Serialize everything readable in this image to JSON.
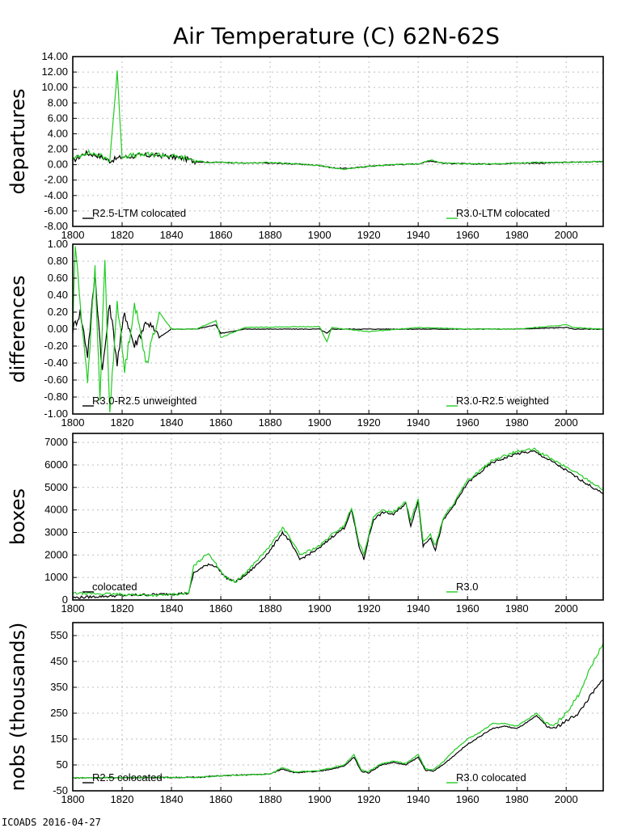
{
  "page": {
    "title": "Air Temperature (C) 62N-62S",
    "footer": "ICOADS 2016-04-27"
  },
  "colors": {
    "black": "#000000",
    "green": "#22cc22"
  },
  "chart_data": [
    {
      "type": "line",
      "ylabel": "departures",
      "xlim": [
        1800,
        2015
      ],
      "ylim": [
        -8,
        14
      ],
      "xticks": [
        1800,
        1820,
        1840,
        1860,
        1880,
        1900,
        1920,
        1940,
        1960,
        1980,
        2000
      ],
      "yticks": [
        -8,
        -6,
        -4,
        -2,
        0,
        2,
        4,
        6,
        8,
        10,
        12,
        14
      ],
      "ytick_labels": [
        "-8.00",
        "-6.00",
        "-4.00",
        "-2.00",
        "0.00",
        "2.00",
        "4.00",
        "6.00",
        "8.00",
        "10.00",
        "12.00",
        "14.00"
      ],
      "grid": true,
      "series": [
        {
          "name": "R2.5-LTM colocated",
          "color": "#000000",
          "legend": "bottom-left",
          "x": [
            1800,
            1805,
            1810,
            1815,
            1818,
            1820,
            1825,
            1830,
            1835,
            1840,
            1845,
            1850,
            1855,
            1860,
            1870,
            1880,
            1890,
            1900,
            1905,
            1910,
            1915,
            1920,
            1930,
            1940,
            1945,
            1950,
            1960,
            1970,
            1980,
            1990,
            2000,
            2015
          ],
          "y": [
            0.5,
            1.5,
            1.2,
            0.5,
            0.8,
            1.0,
            1.1,
            1.2,
            1.2,
            1.0,
            0.8,
            0.4,
            0.3,
            0.3,
            0.2,
            0.2,
            0.1,
            -0.1,
            -0.4,
            -0.5,
            -0.4,
            -0.2,
            0,
            0.1,
            0.5,
            0.2,
            0.1,
            0.1,
            0.2,
            0.2,
            0.3,
            0.4
          ]
        },
        {
          "name": "R3.0-LTM colocated",
          "color": "#22cc22",
          "legend": "bottom-right",
          "x": [
            1800,
            1805,
            1810,
            1815,
            1818,
            1820,
            1825,
            1830,
            1835,
            1840,
            1845,
            1850,
            1855,
            1860,
            1870,
            1880,
            1890,
            1900,
            1905,
            1910,
            1915,
            1920,
            1930,
            1940,
            1945,
            1950,
            1960,
            1970,
            1980,
            1990,
            2000,
            2015
          ],
          "y": [
            0.6,
            1.6,
            1.3,
            0.6,
            12.0,
            1.1,
            1.2,
            1.3,
            1.3,
            1.1,
            0.9,
            0.5,
            0.3,
            0.3,
            0.2,
            0.3,
            0.1,
            -0.1,
            -0.4,
            -0.6,
            -0.4,
            -0.2,
            0,
            0.1,
            0.6,
            0.2,
            0.1,
            0.1,
            0.2,
            0.3,
            0.3,
            0.4
          ]
        }
      ]
    },
    {
      "type": "line",
      "ylabel": "differences",
      "xlim": [
        1800,
        2015
      ],
      "ylim": [
        -1,
        1
      ],
      "xticks": [
        1800,
        1820,
        1840,
        1860,
        1880,
        1900,
        1920,
        1940,
        1960,
        1980,
        2000
      ],
      "yticks": [
        -1,
        -0.8,
        -0.6,
        -0.4,
        -0.2,
        0,
        0.2,
        0.4,
        0.6,
        0.8,
        1
      ],
      "ytick_labels": [
        "-1.00",
        "-0.80",
        "-0.60",
        "-0.40",
        "-0.20",
        "0.00",
        "0.20",
        "0.40",
        "0.60",
        "0.80",
        "1.00"
      ],
      "grid": true,
      "series": [
        {
          "name": "R3.0-R2.5 unweighted",
          "color": "#000000",
          "legend": "bottom-left",
          "x": [
            1800,
            1803,
            1806,
            1809,
            1812,
            1815,
            1818,
            1821,
            1825,
            1830,
            1835,
            1840,
            1850,
            1858,
            1860,
            1870,
            1900,
            1903,
            1905,
            1910,
            1920,
            1940,
            1960,
            1980,
            2000,
            2003,
            2015
          ],
          "y": [
            0,
            0.2,
            -0.3,
            0.65,
            -0.5,
            0.3,
            -0.4,
            0.2,
            -0.2,
            0.1,
            -0.1,
            0,
            0,
            0.05,
            -0.05,
            0,
            0,
            -0.05,
            0,
            0,
            0,
            0,
            0,
            0,
            0.02,
            0,
            0
          ]
        },
        {
          "name": "R3.0-R2.5 weighted",
          "color": "#22cc22",
          "legend": "bottom-right",
          "x": [
            1800,
            1801,
            1803,
            1806,
            1809,
            1811,
            1813,
            1815,
            1818,
            1821,
            1825,
            1830,
            1835,
            1840,
            1850,
            1858,
            1860,
            1870,
            1900,
            1903,
            1905,
            1910,
            1920,
            1940,
            1960,
            1980,
            2000,
            2003,
            2015
          ],
          "y": [
            0,
            1.0,
            0.3,
            -0.6,
            0.7,
            -0.8,
            0.8,
            -1.0,
            0.35,
            -0.5,
            0.3,
            -0.4,
            0.2,
            0,
            0,
            0.1,
            -0.1,
            0.02,
            0.03,
            -0.15,
            0.02,
            0,
            -0.03,
            0.02,
            0,
            0,
            0.05,
            0.02,
            0
          ]
        }
      ]
    },
    {
      "type": "line",
      "ylabel": "boxes",
      "xlim": [
        1800,
        2015
      ],
      "ylim": [
        0,
        7400
      ],
      "xticks": [
        1800,
        1820,
        1840,
        1860,
        1880,
        1900,
        1920,
        1940,
        1960,
        1980,
        2000
      ],
      "yticks": [
        0,
        1000,
        2000,
        3000,
        4000,
        5000,
        6000,
        7000
      ],
      "ytick_labels": [
        "0",
        "1000",
        "2000",
        "3000",
        "4000",
        "5000",
        "6000",
        "7000"
      ],
      "grid": true,
      "series": [
        {
          "name": "colocated",
          "color": "#000000",
          "legend": "bottom-left",
          "x": [
            1800,
            1820,
            1835,
            1847,
            1849,
            1852,
            1855,
            1858,
            1862,
            1866,
            1870,
            1875,
            1880,
            1885,
            1888,
            1892,
            1900,
            1905,
            1910,
            1913,
            1916,
            1918,
            1920,
            1922,
            1926,
            1930,
            1935,
            1937,
            1940,
            1942,
            1945,
            1947,
            1950,
            1955,
            1960,
            1970,
            1980,
            1987,
            1995,
            2005,
            2015
          ],
          "y": [
            100,
            200,
            250,
            300,
            1200,
            1400,
            1600,
            1500,
            1000,
            800,
            1100,
            1600,
            2200,
            3000,
            2600,
            1800,
            2300,
            2800,
            3200,
            4000,
            2400,
            1800,
            2800,
            3600,
            3900,
            3800,
            4300,
            3300,
            4400,
            2400,
            2800,
            2200,
            3500,
            4300,
            5200,
            6100,
            6500,
            6600,
            6100,
            5400,
            4700
          ]
        },
        {
          "name": "R3.0",
          "color": "#22cc22",
          "legend": "bottom-right",
          "x": [
            1800,
            1820,
            1835,
            1847,
            1849,
            1852,
            1855,
            1858,
            1862,
            1866,
            1870,
            1875,
            1880,
            1885,
            1888,
            1892,
            1900,
            1905,
            1910,
            1913,
            1916,
            1918,
            1920,
            1922,
            1926,
            1930,
            1935,
            1937,
            1940,
            1942,
            1945,
            1947,
            1950,
            1955,
            1960,
            1970,
            1980,
            1987,
            1995,
            2005,
            2015
          ],
          "y": [
            300,
            250,
            200,
            300,
            1500,
            1800,
            2100,
            1600,
            1000,
            800,
            1200,
            1800,
            2400,
            3200,
            2800,
            2000,
            2400,
            2900,
            3300,
            4100,
            2600,
            2000,
            2900,
            3700,
            4000,
            3900,
            4400,
            3500,
            4500,
            2600,
            2900,
            2400,
            3600,
            4400,
            5300,
            6200,
            6600,
            6700,
            6200,
            5600,
            4900
          ]
        }
      ]
    },
    {
      "type": "line",
      "ylabel": "nobs (thousands)",
      "xlim": [
        1800,
        2015
      ],
      "ylim": [
        -50,
        600
      ],
      "xticks": [
        1800,
        1820,
        1840,
        1860,
        1880,
        1900,
        1920,
        1940,
        1960,
        1980,
        2000
      ],
      "yticks": [
        -50,
        50,
        150,
        250,
        350,
        450,
        550
      ],
      "ytick_labels": [
        "-50",
        "50",
        "150",
        "250",
        "350",
        "450",
        "550"
      ],
      "grid": true,
      "series": [
        {
          "name": "R2.5 colocated",
          "color": "#000000",
          "legend": "bottom-left",
          "x": [
            1800,
            1850,
            1860,
            1880,
            1885,
            1890,
            1900,
            1910,
            1914,
            1917,
            1920,
            1925,
            1930,
            1935,
            1940,
            1943,
            1946,
            1950,
            1955,
            1960,
            1965,
            1970,
            1975,
            1980,
            1985,
            1988,
            1992,
            1995,
            2000,
            2005,
            2010,
            2015
          ],
          "y": [
            0,
            2,
            8,
            15,
            35,
            20,
            25,
            45,
            80,
            25,
            20,
            50,
            60,
            50,
            80,
            30,
            25,
            50,
            90,
            130,
            160,
            190,
            200,
            190,
            220,
            240,
            200,
            190,
            220,
            250,
            320,
            380
          ]
        },
        {
          "name": "R3.0 colocated",
          "color": "#22cc22",
          "legend": "bottom-right",
          "x": [
            1800,
            1850,
            1860,
            1880,
            1885,
            1890,
            1900,
            1910,
            1914,
            1917,
            1920,
            1925,
            1930,
            1935,
            1940,
            1943,
            1946,
            1950,
            1955,
            1960,
            1965,
            1970,
            1975,
            1980,
            1985,
            1988,
            1992,
            1995,
            2000,
            2005,
            2010,
            2015
          ],
          "y": [
            0,
            2,
            8,
            15,
            40,
            22,
            28,
            50,
            90,
            30,
            25,
            55,
            65,
            55,
            90,
            35,
            30,
            60,
            110,
            150,
            175,
            210,
            210,
            200,
            230,
            250,
            210,
            200,
            250,
            320,
            430,
            520
          ]
        }
      ]
    }
  ]
}
